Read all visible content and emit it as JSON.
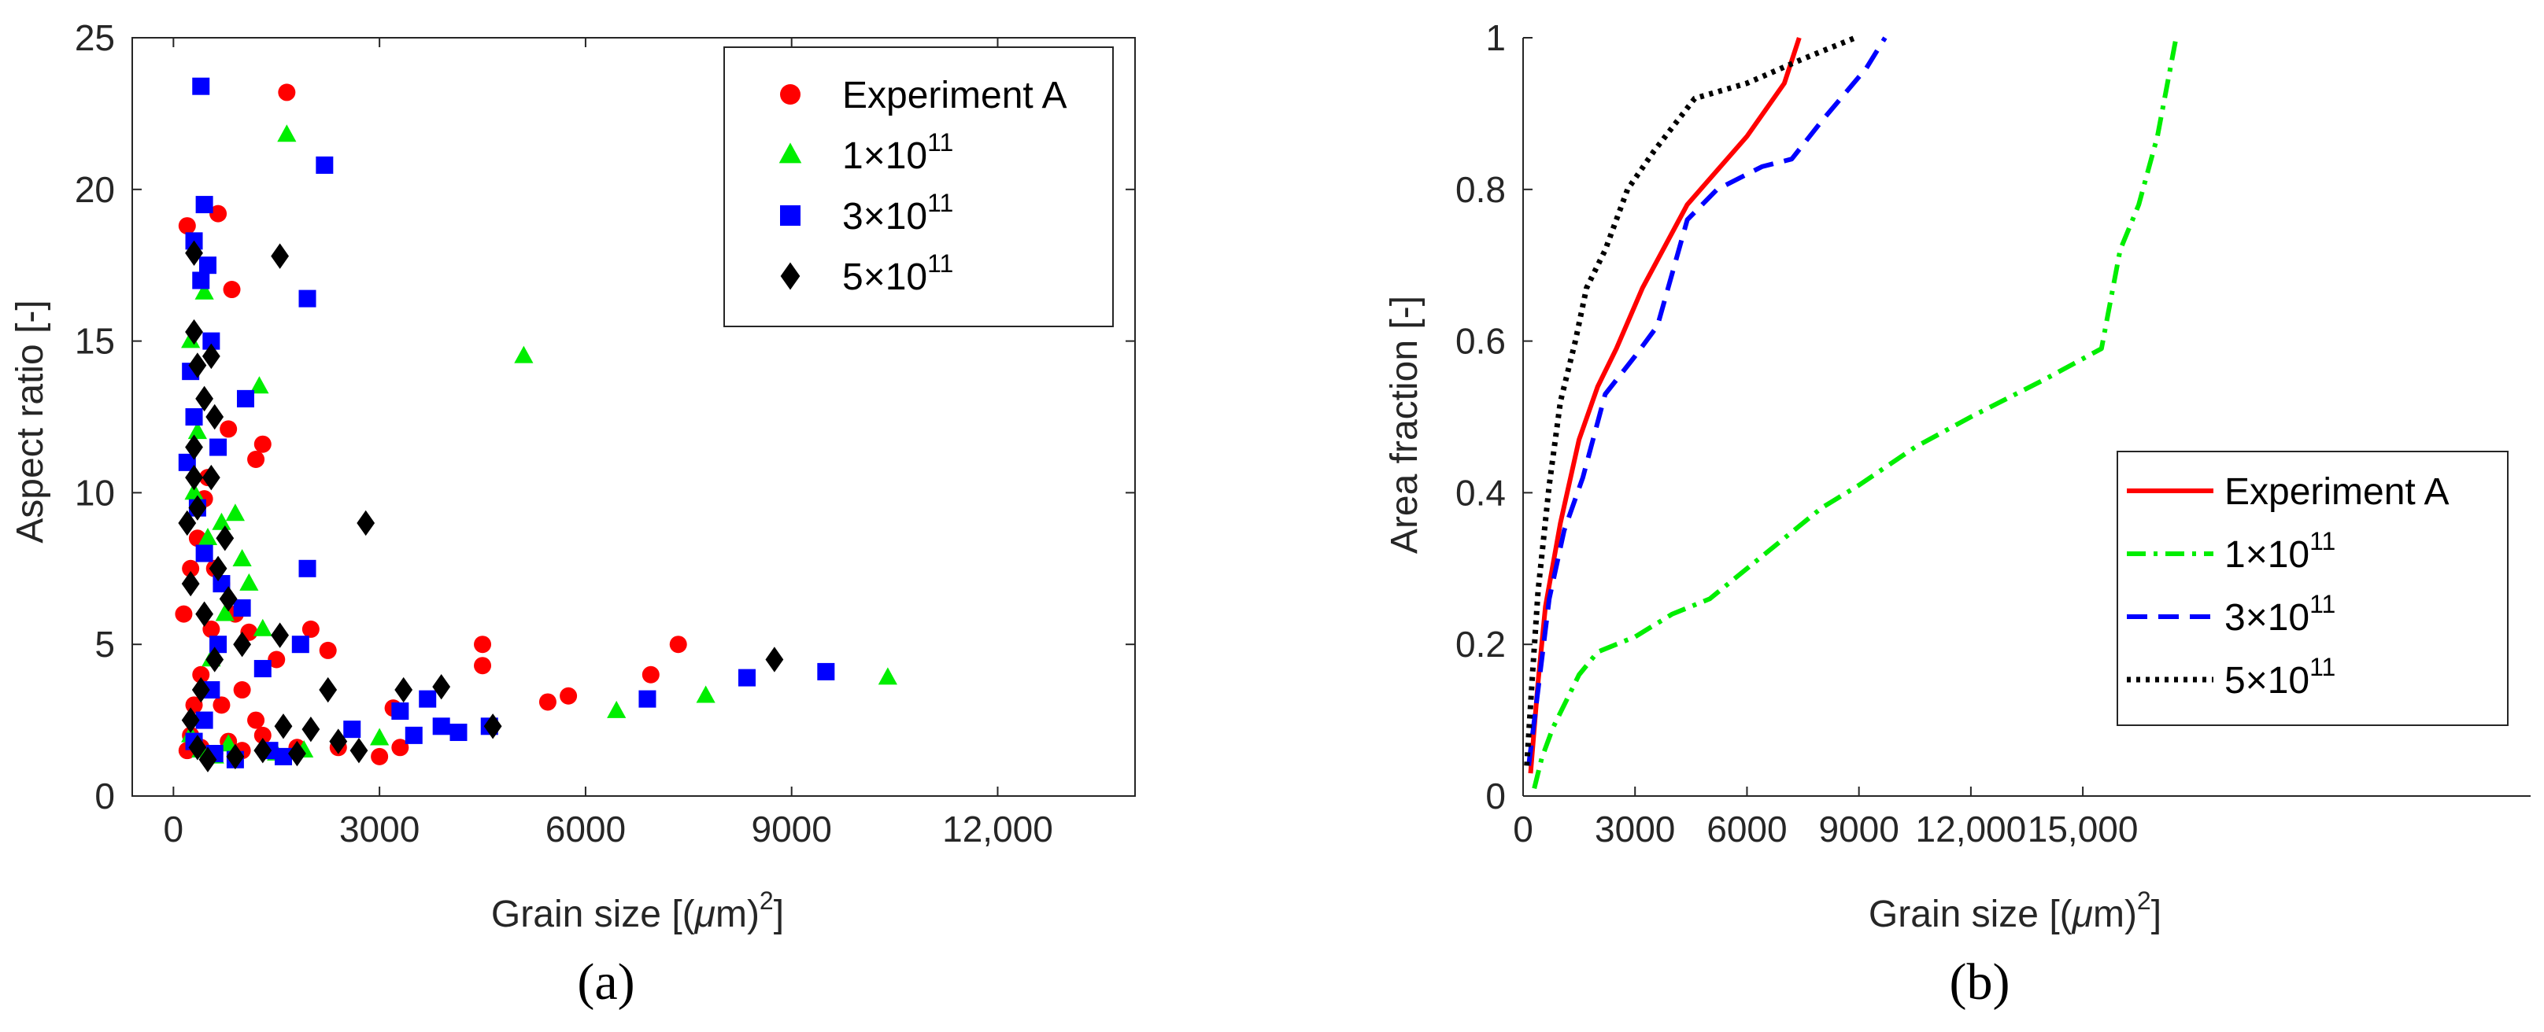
{
  "charts": {
    "a": {
      "type": "scatter",
      "xlabel_pre": "Grain size [(",
      "xlabel_mu": "μ",
      "xlabel_post": "m)",
      "xlabel_sup": "2",
      "xlabel_end": "]",
      "ylabel": "Aspect ratio [-]",
      "xlim": [
        -600,
        14000
      ],
      "ylim": [
        0,
        25
      ],
      "xticks": [
        {
          "v": 0,
          "label": "0"
        },
        {
          "v": 3000,
          "label": "3000"
        },
        {
          "v": 6000,
          "label": "6000"
        },
        {
          "v": 9000,
          "label": "9000"
        },
        {
          "v": 12000,
          "label": "12,000"
        }
      ],
      "yticks": [
        {
          "v": 0,
          "label": "0"
        },
        {
          "v": 5,
          "label": "5"
        },
        {
          "v": 10,
          "label": "10"
        },
        {
          "v": 15,
          "label": "15"
        },
        {
          "v": 20,
          "label": "20"
        },
        {
          "v": 25,
          "label": "25"
        }
      ],
      "legend_position": "top-right",
      "subfigure_label": "(a)",
      "series": [
        {
          "name": "Experiment A",
          "base": "Experiment A",
          "sup": "",
          "color": "#ff0000",
          "marker": "circle",
          "points": [
            [
              200,
              18.8
            ],
            [
              650,
              19.2
            ],
            [
              1650,
              23.2
            ],
            [
              850,
              16.7
            ],
            [
              1300,
              11.6
            ],
            [
              1200,
              11.1
            ],
            [
              800,
              12.1
            ],
            [
              500,
              10.5
            ],
            [
              450,
              9.8
            ],
            [
              350,
              8.5
            ],
            [
              600,
              7.5
            ],
            [
              700,
              7.0
            ],
            [
              900,
              6.0
            ],
            [
              1100,
              5.4
            ],
            [
              1500,
              4.5
            ],
            [
              2000,
              5.5
            ],
            [
              2250,
              4.8
            ],
            [
              3200,
              2.9
            ],
            [
              4500,
              5.0
            ],
            [
              4500,
              4.3
            ],
            [
              3000,
              1.3
            ],
            [
              3300,
              1.6
            ],
            [
              5450,
              3.1
            ],
            [
              5750,
              3.3
            ],
            [
              6950,
              4.0
            ],
            [
              7350,
              5.0
            ],
            [
              300,
              3.0
            ],
            [
              250,
              2.0
            ],
            [
              200,
              1.5
            ],
            [
              400,
              1.6
            ],
            [
              600,
              1.4
            ],
            [
              800,
              1.8
            ],
            [
              1000,
              1.5
            ],
            [
              1300,
              2.0
            ],
            [
              1800,
              1.6
            ],
            [
              2400,
              1.6
            ],
            [
              400,
              4.0
            ],
            [
              700,
              3.0
            ],
            [
              1000,
              3.5
            ],
            [
              1200,
              2.5
            ],
            [
              150,
              6.0
            ],
            [
              250,
              7.5
            ],
            [
              550,
              5.5
            ]
          ]
        },
        {
          "name": "1×10^11",
          "base": "1×10",
          "sup": "11",
          "color": "#00ee00",
          "marker": "triangle",
          "points": [
            [
              1650,
              21.8
            ],
            [
              5100,
              14.5
            ],
            [
              450,
              16.6
            ],
            [
              250,
              15.0
            ],
            [
              1250,
              13.5
            ],
            [
              900,
              9.3
            ],
            [
              1000,
              7.8
            ],
            [
              1100,
              7.0
            ],
            [
              1300,
              5.5
            ],
            [
              700,
              9.0
            ],
            [
              500,
              8.5
            ],
            [
              350,
              12.0
            ],
            [
              6450,
              2.8
            ],
            [
              7750,
              3.3
            ],
            [
              10400,
              3.9
            ],
            [
              3000,
              1.9
            ],
            [
              1900,
              1.5
            ],
            [
              1500,
              1.4
            ],
            [
              800,
              1.7
            ],
            [
              600,
              1.3
            ],
            [
              400,
              1.5
            ],
            [
              250,
              2.0
            ],
            [
              550,
              4.5
            ],
            [
              750,
              6.0
            ],
            [
              300,
              10.0
            ]
          ]
        },
        {
          "name": "3×10^11",
          "base": "3×10",
          "sup": "11",
          "color": "#0000ff",
          "marker": "square",
          "points": [
            [
              400,
              23.4
            ],
            [
              2200,
              20.8
            ],
            [
              450,
              19.5
            ],
            [
              300,
              18.3
            ],
            [
              1950,
              16.4
            ],
            [
              500,
              17.5
            ],
            [
              400,
              17.0
            ],
            [
              250,
              14.0
            ],
            [
              1050,
              13.1
            ],
            [
              550,
              15.0
            ],
            [
              300,
              12.5
            ],
            [
              650,
              11.5
            ],
            [
              1950,
              7.5
            ],
            [
              1850,
              5.0
            ],
            [
              1300,
              4.2
            ],
            [
              1000,
              6.2
            ],
            [
              700,
              7.0
            ],
            [
              450,
              8.0
            ],
            [
              3300,
              2.8
            ],
            [
              3700,
              3.2
            ],
            [
              3900,
              2.3
            ],
            [
              4600,
              2.3
            ],
            [
              6900,
              3.2
            ],
            [
              8350,
              3.9
            ],
            [
              9500,
              4.1
            ],
            [
              2600,
              2.2
            ],
            [
              3500,
              2.0
            ],
            [
              4150,
              2.1
            ],
            [
              1400,
              1.5
            ],
            [
              1600,
              1.3
            ],
            [
              900,
              1.2
            ],
            [
              600,
              1.4
            ],
            [
              300,
              1.8
            ],
            [
              450,
              2.5
            ],
            [
              550,
              3.5
            ],
            [
              650,
              5.0
            ],
            [
              350,
              9.5
            ],
            [
              200,
              11.0
            ]
          ]
        },
        {
          "name": "5×10^11",
          "base": "5×10",
          "sup": "11",
          "color": "#000000",
          "marker": "diamond",
          "points": [
            [
              1550,
              17.8
            ],
            [
              300,
              17.9
            ],
            [
              300,
              15.3
            ],
            [
              550,
              14.5
            ],
            [
              350,
              14.2
            ],
            [
              450,
              13.1
            ],
            [
              300,
              11.5
            ],
            [
              550,
              10.5
            ],
            [
              350,
              9.5
            ],
            [
              750,
              8.5
            ],
            [
              650,
              7.5
            ],
            [
              800,
              6.5
            ],
            [
              1000,
              5.0
            ],
            [
              1550,
              5.3
            ],
            [
              2800,
              9.0
            ],
            [
              2250,
              3.5
            ],
            [
              3350,
              3.5
            ],
            [
              3900,
              3.6
            ],
            [
              4650,
              2.3
            ],
            [
              8750,
              4.5
            ],
            [
              2000,
              2.2
            ],
            [
              1600,
              2.3
            ],
            [
              2400,
              1.8
            ],
            [
              2700,
              1.5
            ],
            [
              1800,
              1.4
            ],
            [
              1300,
              1.5
            ],
            [
              900,
              1.3
            ],
            [
              500,
              1.2
            ],
            [
              350,
              1.6
            ],
            [
              250,
              2.5
            ],
            [
              400,
              3.5
            ],
            [
              600,
              4.5
            ],
            [
              450,
              6.0
            ],
            [
              250,
              7.0
            ],
            [
              200,
              9.0
            ],
            [
              300,
              10.5
            ],
            [
              600,
              12.5
            ]
          ]
        }
      ]
    },
    "b": {
      "type": "line",
      "xlabel_pre": "Grain size [(",
      "xlabel_mu": "μ",
      "xlabel_post": "m)",
      "xlabel_sup": "2",
      "xlabel_end": "]",
      "ylabel": "Area fraction [-]",
      "xlim": [
        0,
        27000
      ],
      "ylim": [
        0,
        1
      ],
      "xticks": [
        {
          "v": 0,
          "label": "0"
        },
        {
          "v": 3000,
          "label": "3000"
        },
        {
          "v": 6000,
          "label": "6000"
        },
        {
          "v": 9000,
          "label": "9000"
        },
        {
          "v": 12000,
          "label": "12,000"
        },
        {
          "v": 15000,
          "label": "15,000"
        }
      ],
      "yticks": [
        {
          "v": 0,
          "label": "0"
        },
        {
          "v": 0.2,
          "label": "0.2"
        },
        {
          "v": 0.4,
          "label": "0.4"
        },
        {
          "v": 0.6,
          "label": "0.6"
        },
        {
          "v": 0.8,
          "label": "0.8"
        },
        {
          "v": 1,
          "label": "1"
        }
      ],
      "legend_position": "bottom-right",
      "subfigure_label": "(b)",
      "series": [
        {
          "name": "Experiment A",
          "base": "Experiment A",
          "sup": "",
          "color": "#ff0000",
          "style": "solid",
          "points": [
            [
              200,
              0.03
            ],
            [
              400,
              0.15
            ],
            [
              600,
              0.25
            ],
            [
              1000,
              0.36
            ],
            [
              1500,
              0.47
            ],
            [
              2000,
              0.54
            ],
            [
              2500,
              0.59
            ],
            [
              3200,
              0.67
            ],
            [
              4400,
              0.78
            ],
            [
              6000,
              0.87
            ],
            [
              7000,
              0.94
            ],
            [
              7400,
              1.0
            ]
          ]
        },
        {
          "name": "1×10^11",
          "base": "1×10",
          "sup": "11",
          "color": "#00ee00",
          "style": "dashdot",
          "points": [
            [
              300,
              0.01
            ],
            [
              500,
              0.05
            ],
            [
              800,
              0.09
            ],
            [
              1200,
              0.13
            ],
            [
              1500,
              0.16
            ],
            [
              2000,
              0.19
            ],
            [
              3000,
              0.21
            ],
            [
              4000,
              0.24
            ],
            [
              5000,
              0.26
            ],
            [
              6000,
              0.3
            ],
            [
              7000,
              0.34
            ],
            [
              8000,
              0.38
            ],
            [
              9000,
              0.41
            ],
            [
              10500,
              0.46
            ],
            [
              12000,
              0.5
            ],
            [
              14000,
              0.55
            ],
            [
              15500,
              0.59
            ],
            [
              16000,
              0.72
            ],
            [
              16500,
              0.78
            ],
            [
              17000,
              0.87
            ],
            [
              17500,
              1.0
            ]
          ]
        },
        {
          "name": "3×10^11",
          "base": "3×10",
          "sup": "11",
          "color": "#0000ff",
          "style": "dashed",
          "points": [
            [
              150,
              0.04
            ],
            [
              400,
              0.14
            ],
            [
              700,
              0.26
            ],
            [
              1100,
              0.35
            ],
            [
              1600,
              0.42
            ],
            [
              2200,
              0.53
            ],
            [
              3000,
              0.58
            ],
            [
              3600,
              0.62
            ],
            [
              4400,
              0.76
            ],
            [
              5200,
              0.8
            ],
            [
              6400,
              0.83
            ],
            [
              7200,
              0.84
            ],
            [
              8000,
              0.89
            ],
            [
              9200,
              0.96
            ],
            [
              9700,
              1.0
            ]
          ]
        },
        {
          "name": "5×10^11",
          "base": "5×10",
          "sup": "11",
          "color": "#000000",
          "style": "dotted",
          "points": [
            [
              100,
              0.04
            ],
            [
              250,
              0.16
            ],
            [
              400,
              0.27
            ],
            [
              700,
              0.41
            ],
            [
              1000,
              0.52
            ],
            [
              1400,
              0.6
            ],
            [
              1700,
              0.67
            ],
            [
              2200,
              0.72
            ],
            [
              2800,
              0.8
            ],
            [
              3500,
              0.85
            ],
            [
              4600,
              0.92
            ],
            [
              6000,
              0.94
            ],
            [
              7400,
              0.97
            ],
            [
              8900,
              1.0
            ]
          ]
        }
      ]
    }
  }
}
